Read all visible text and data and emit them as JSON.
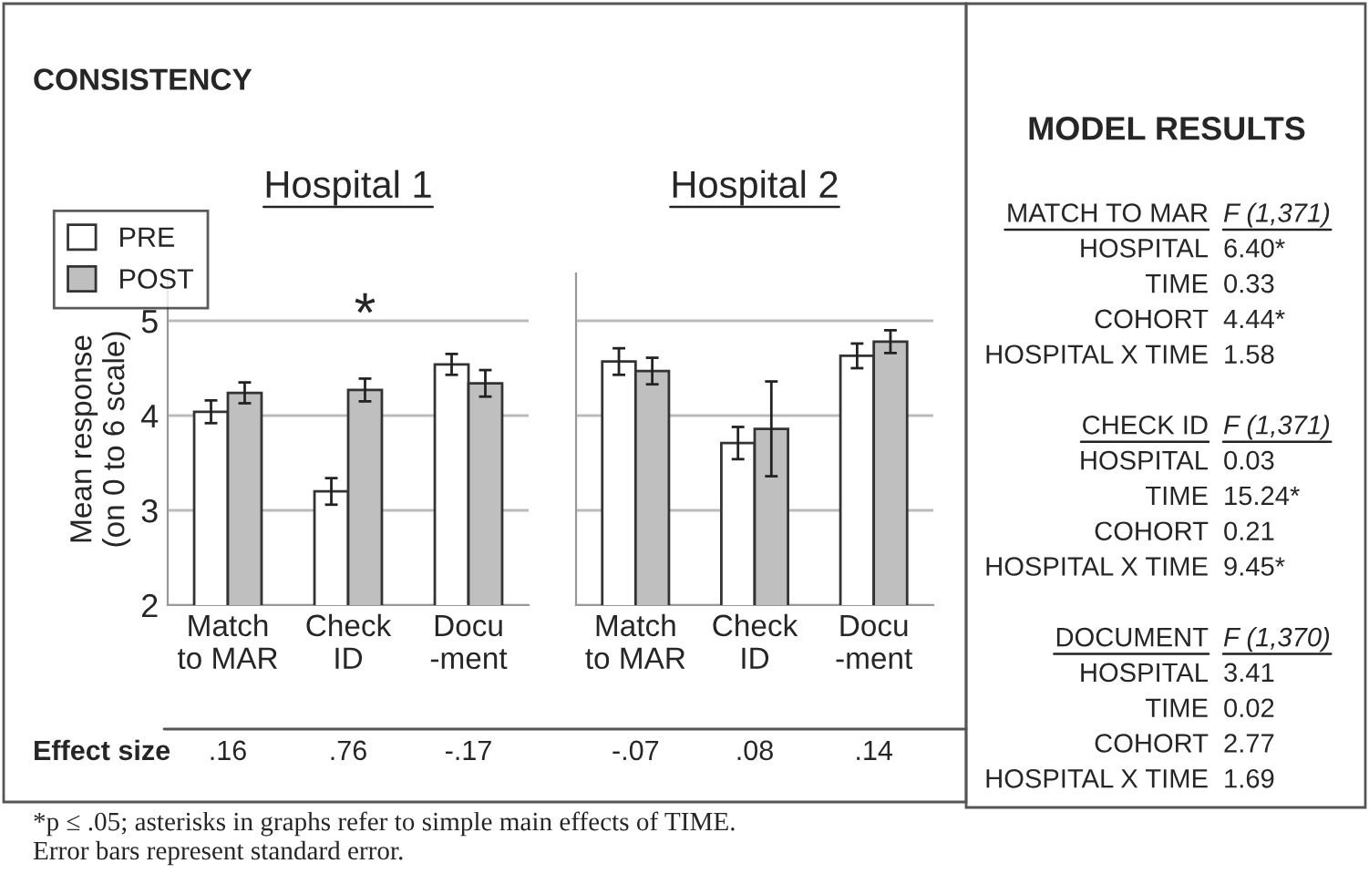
{
  "chart_data": [
    {
      "type": "bar",
      "title": "Hospital 1",
      "ylabel": "Mean response\n(on 0 to 6 scale)",
      "categories": [
        "Match\nto MAR",
        "Check\nID",
        "Docu\n-ment"
      ],
      "series": [
        {
          "name": "PRE",
          "color": "#ffffff",
          "values": [
            4.04,
            3.2,
            4.54
          ],
          "errors": [
            0.12,
            0.14,
            0.11
          ]
        },
        {
          "name": "POST",
          "color": "#bfbfbf",
          "values": [
            4.24,
            4.27,
            4.34
          ],
          "errors": [
            0.11,
            0.12,
            0.14
          ]
        }
      ],
      "ylim": [
        2,
        5.5
      ],
      "yticks": [
        2,
        3,
        4,
        5
      ],
      "grid": "y",
      "legend": "top left",
      "annotations": [
        "CONSISTENCY",
        "*",
        "Effect size",
        ".16",
        ".76",
        "-.17",
        "*p ≤ .05; asterisks in graphs refer to simple main effects of TIME.",
        "Error bars represent standard error."
      ]
    },
    {
      "type": "bar",
      "title": "Hospital 2",
      "categories": [
        "Match\nto MAR",
        "Check\nID",
        "Docu\n-ment"
      ],
      "series": [
        {
          "color": "#ffffff",
          "values": [
            4.57,
            3.71,
            4.63
          ],
          "errors": [
            0.14,
            0.17,
            0.13
          ]
        },
        {
          "color": "#bfbfbf",
          "values": [
            4.47,
            3.86,
            4.78
          ],
          "errors": [
            0.14,
            0.5,
            0.12
          ]
        }
      ],
      "ylim": [
        2,
        5.5
      ],
      "yticks": [
        2,
        3,
        4,
        5
      ],
      "grid": "y",
      "tick_labels": "x",
      "annotations": [
        "-.07",
        ".08",
        ".14"
      ]
    },
    {
      "type": "other",
      "title": "MODEL RESULTS",
      "categories": [
        "MATCH TO MAR",
        "HOSPITAL",
        "TIME",
        "COHORT",
        "HOSPITAL X TIME",
        "CHECK ID",
        "HOSPITAL",
        "TIME",
        "COHORT",
        "HOSPITAL X TIME",
        "DOCUMENT",
        "HOSPITAL",
        "TIME",
        "COHORT",
        "HOSPITAL X TIME"
      ],
      "value_labels": [
        "F (1,371)",
        "6.40*",
        "0.33",
        "4.44*",
        "1.58",
        "F (1,371)",
        "0.03",
        "15.24*",
        "0.21",
        "9.45*",
        "F (1,370)",
        "3.41",
        "0.02",
        "2.77",
        "1.69"
      ]
    }
  ]
}
